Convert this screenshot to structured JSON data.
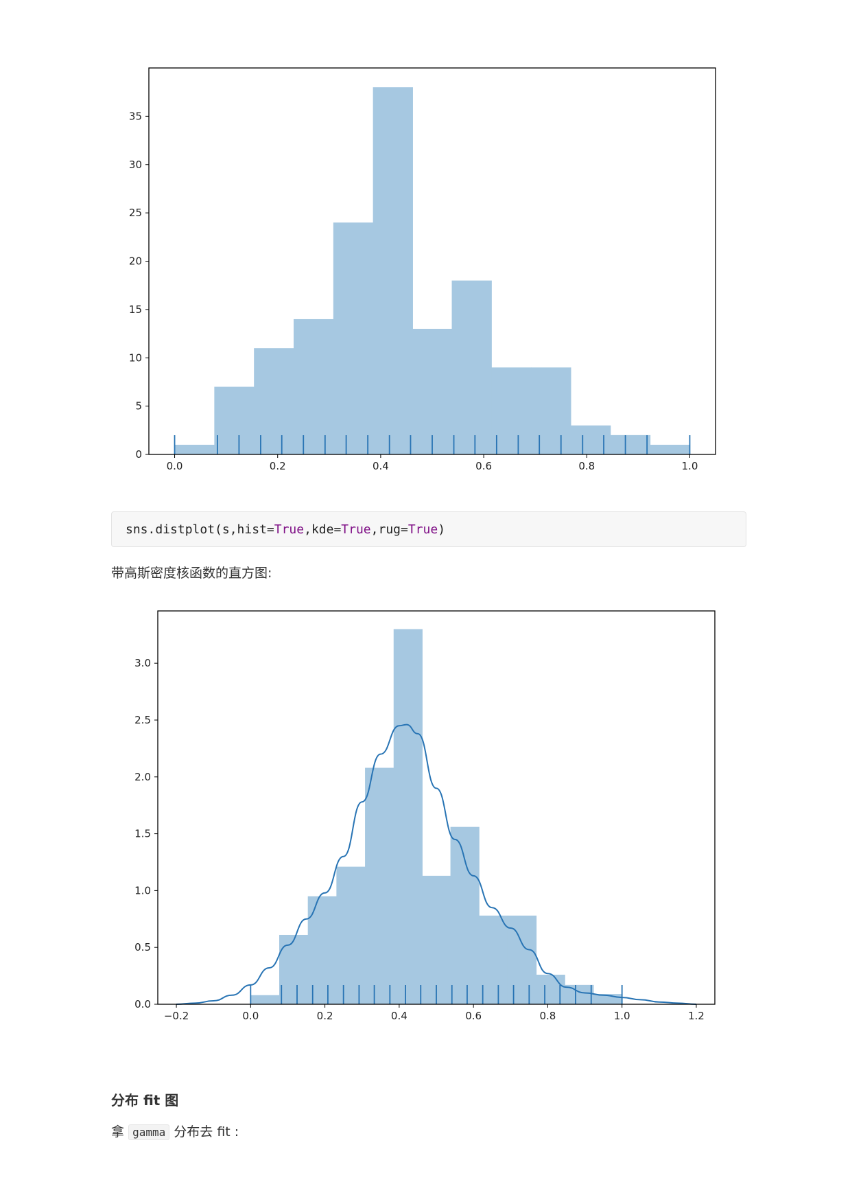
{
  "colors": {
    "hist_fill": "#a6c8e1",
    "line": "#2874b4",
    "rug": "#2874b4",
    "keyword": "#7f0f86"
  },
  "chart_data": [
    {
      "type": "bar",
      "title": "",
      "xlabel": "",
      "ylabel": "",
      "xlim": [
        -0.05,
        1.05
      ],
      "ylim": [
        0,
        40
      ],
      "xticks": [
        "0.0",
        "0.2",
        "0.4",
        "0.6",
        "0.8",
        "1.0"
      ],
      "yticks": [
        "0",
        "5",
        "10",
        "15",
        "20",
        "25",
        "30",
        "35"
      ],
      "bins": [
        {
          "x0": 0.0,
          "x1": 0.077,
          "value": 1
        },
        {
          "x0": 0.077,
          "x1": 0.154,
          "value": 7
        },
        {
          "x0": 0.154,
          "x1": 0.231,
          "value": 11
        },
        {
          "x0": 0.231,
          "x1": 0.308,
          "value": 14
        },
        {
          "x0": 0.308,
          "x1": 0.385,
          "value": 24
        },
        {
          "x0": 0.385,
          "x1": 0.462,
          "value": 38
        },
        {
          "x0": 0.462,
          "x1": 0.538,
          "value": 13
        },
        {
          "x0": 0.538,
          "x1": 0.615,
          "value": 18
        },
        {
          "x0": 0.615,
          "x1": 0.692,
          "value": 9
        },
        {
          "x0": 0.692,
          "x1": 0.769,
          "value": 9
        },
        {
          "x0": 0.769,
          "x1": 0.846,
          "value": 3
        },
        {
          "x0": 0.846,
          "x1": 0.923,
          "value": 2
        },
        {
          "x0": 0.923,
          "x1": 1.0,
          "value": 1
        }
      ],
      "rug": [
        0.0,
        0.083,
        0.125,
        0.167,
        0.208,
        0.25,
        0.292,
        0.333,
        0.375,
        0.417,
        0.458,
        0.5,
        0.542,
        0.583,
        0.625,
        0.667,
        0.708,
        0.75,
        0.792,
        0.833,
        0.875,
        0.917,
        1.0
      ]
    },
    {
      "type": "bar",
      "title": "",
      "xlabel": "",
      "ylabel": "",
      "xlim": [
        -0.25,
        1.25
      ],
      "ylim": [
        0,
        3.46
      ],
      "xticks": [
        "−0.2",
        "0.0",
        "0.2",
        "0.4",
        "0.6",
        "0.8",
        "1.0",
        "1.2"
      ],
      "yticks": [
        "0.0",
        "0.5",
        "1.0",
        "1.5",
        "2.0",
        "2.5",
        "3.0"
      ],
      "bins": [
        {
          "x0": 0.0,
          "x1": 0.077,
          "value": 0.08
        },
        {
          "x0": 0.077,
          "x1": 0.154,
          "value": 0.61
        },
        {
          "x0": 0.154,
          "x1": 0.231,
          "value": 0.95
        },
        {
          "x0": 0.231,
          "x1": 0.308,
          "value": 1.21
        },
        {
          "x0": 0.308,
          "x1": 0.385,
          "value": 2.08
        },
        {
          "x0": 0.385,
          "x1": 0.462,
          "value": 3.3
        },
        {
          "x0": 0.462,
          "x1": 0.538,
          "value": 1.13
        },
        {
          "x0": 0.538,
          "x1": 0.615,
          "value": 1.56
        },
        {
          "x0": 0.615,
          "x1": 0.692,
          "value": 0.78
        },
        {
          "x0": 0.692,
          "x1": 0.769,
          "value": 0.78
        },
        {
          "x0": 0.769,
          "x1": 0.846,
          "value": 0.26
        },
        {
          "x0": 0.846,
          "x1": 0.923,
          "value": 0.17
        },
        {
          "x0": 0.923,
          "x1": 1.0,
          "value": 0.09
        }
      ],
      "kde": {
        "x": [
          -0.2,
          -0.15,
          -0.1,
          -0.05,
          0.0,
          0.05,
          0.1,
          0.15,
          0.2,
          0.25,
          0.3,
          0.35,
          0.4,
          0.42,
          0.45,
          0.5,
          0.55,
          0.6,
          0.65,
          0.7,
          0.75,
          0.8,
          0.85,
          0.9,
          0.95,
          1.0,
          1.05,
          1.1,
          1.15,
          1.2
        ],
        "y": [
          0.0,
          0.01,
          0.03,
          0.08,
          0.17,
          0.32,
          0.52,
          0.75,
          0.98,
          1.3,
          1.78,
          2.2,
          2.45,
          2.46,
          2.38,
          1.9,
          1.45,
          1.13,
          0.85,
          0.67,
          0.48,
          0.27,
          0.15,
          0.1,
          0.08,
          0.06,
          0.04,
          0.02,
          0.01,
          0.0
        ]
      },
      "rug": [
        0.0,
        0.083,
        0.125,
        0.167,
        0.208,
        0.25,
        0.292,
        0.333,
        0.375,
        0.417,
        0.458,
        0.5,
        0.542,
        0.583,
        0.625,
        0.667,
        0.708,
        0.75,
        0.792,
        0.833,
        0.875,
        0.917,
        1.0
      ]
    }
  ],
  "code": {
    "prefix": "sns.distplot(s,hist=",
    "true1": "True",
    "mid1": ",kde=",
    "true2": "True",
    "mid2": ",rug=",
    "true3": "True",
    "suffix": ")"
  },
  "text": {
    "kde_caption": "带高斯密度核函数的直方图:",
    "heading": "分布 fit 图",
    "fit_prefix": "拿",
    "fit_code": "gamma",
    "fit_suffix": "分布去 fit :"
  }
}
